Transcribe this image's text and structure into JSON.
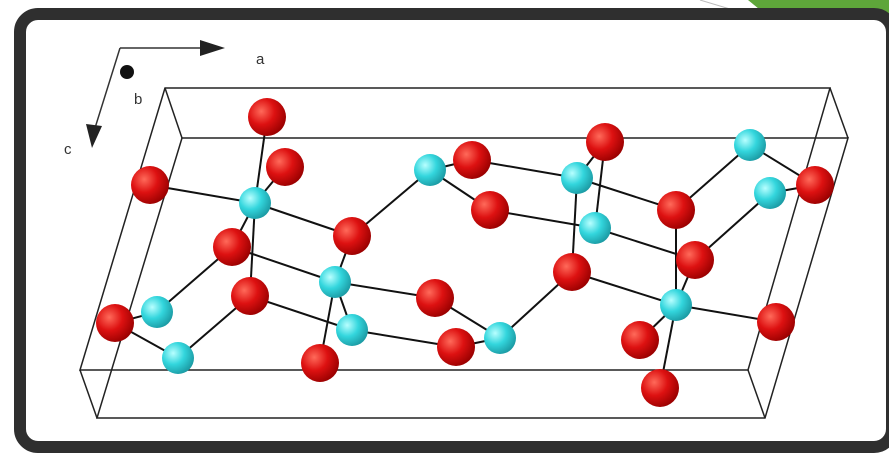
{
  "axis_labels": {
    "a": "a",
    "b": "b",
    "c": "c"
  }
}
